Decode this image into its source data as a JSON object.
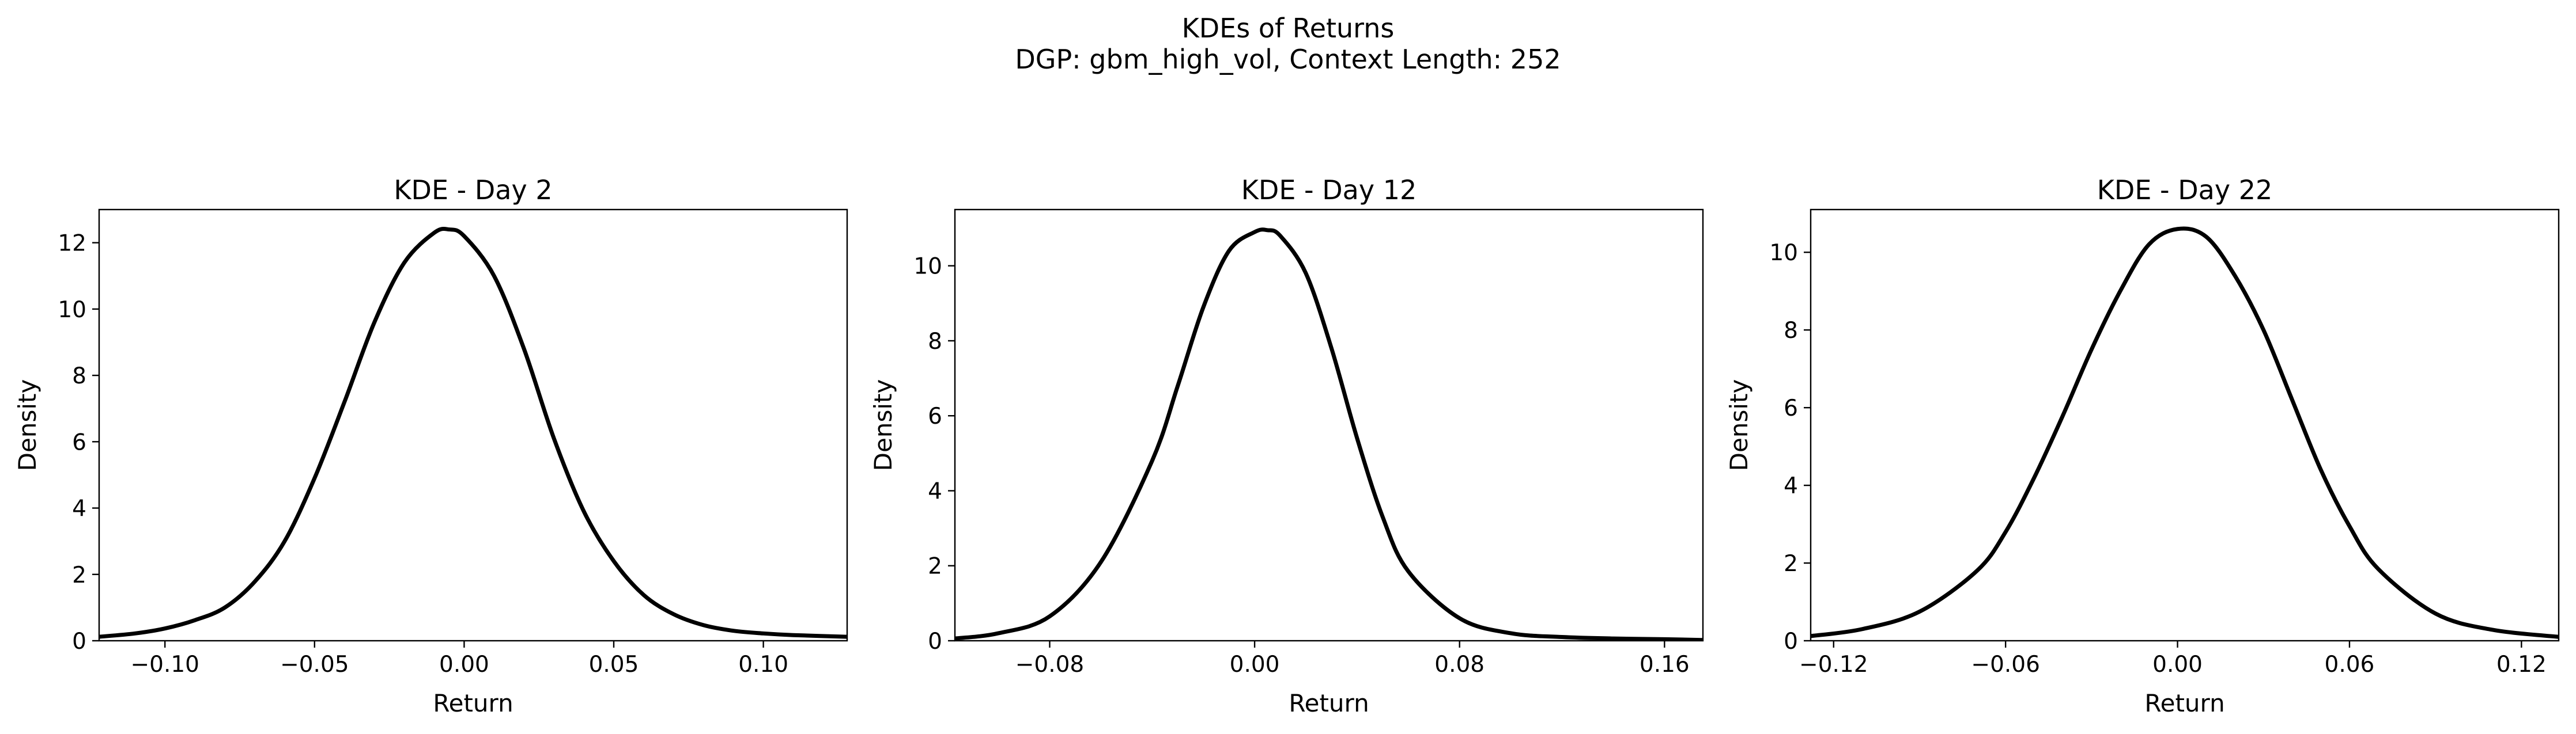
{
  "figure": {
    "title_line1": "KDEs of Returns",
    "title_line2": "DGP: gbm_high_vol, Context Length: 252"
  },
  "chart_data": [
    {
      "type": "line",
      "title": "KDE - Day 2",
      "xlabel": "Return",
      "ylabel": "Density",
      "xlim": [
        -0.122,
        0.128
      ],
      "ylim": [
        0,
        13.0
      ],
      "xticks": [
        -0.1,
        -0.05,
        0.0,
        0.05,
        0.1
      ],
      "xtick_labels": [
        "−0.10",
        "−0.05",
        "0.00",
        "0.05",
        "0.10"
      ],
      "yticks": [
        0,
        2,
        4,
        6,
        8,
        10,
        12
      ],
      "ytick_labels": [
        "0",
        "2",
        "4",
        "6",
        "8",
        "10",
        "12"
      ],
      "line_color": "#000000",
      "series": [
        {
          "x": [
            -0.122,
            -0.11,
            -0.1,
            -0.09,
            -0.08,
            -0.07,
            -0.06,
            -0.05,
            -0.04,
            -0.03,
            -0.02,
            -0.01,
            -0.005,
            0.0,
            0.01,
            0.02,
            0.03,
            0.04,
            0.05,
            0.06,
            0.07,
            0.08,
            0.09,
            0.1,
            0.11,
            0.128
          ],
          "y": [
            0.12,
            0.22,
            0.37,
            0.62,
            1.0,
            1.78,
            3.0,
            4.9,
            7.2,
            9.6,
            11.4,
            12.3,
            12.4,
            12.2,
            11.0,
            8.8,
            6.1,
            3.9,
            2.4,
            1.38,
            0.8,
            0.47,
            0.3,
            0.22,
            0.17,
            0.12
          ]
        }
      ]
    },
    {
      "type": "line",
      "title": "KDE - Day 12",
      "xlabel": "Return",
      "ylabel": "Density",
      "xlim": [
        -0.117,
        0.175
      ],
      "ylim": [
        0,
        11.5
      ],
      "xticks": [
        -0.08,
        0.0,
        0.08,
        0.16
      ],
      "xtick_labels": [
        "−0.08",
        "0.00",
        "0.08",
        "0.16"
      ],
      "yticks": [
        0,
        2,
        4,
        6,
        8,
        10
      ],
      "ytick_labels": [
        "0",
        "2",
        "4",
        "6",
        "8",
        "10"
      ],
      "line_color": "#000000",
      "series": [
        {
          "x": [
            -0.117,
            -0.1,
            -0.08,
            -0.06,
            -0.04,
            -0.03,
            -0.02,
            -0.01,
            0.0,
            0.005,
            0.01,
            0.02,
            0.03,
            0.04,
            0.05,
            0.06,
            0.08,
            0.1,
            0.12,
            0.14,
            0.16,
            0.175
          ],
          "y": [
            0.06,
            0.2,
            0.65,
            2.1,
            4.8,
            6.8,
            8.9,
            10.4,
            10.9,
            10.95,
            10.8,
            9.8,
            7.8,
            5.4,
            3.3,
            1.85,
            0.6,
            0.2,
            0.1,
            0.06,
            0.04,
            0.02
          ]
        }
      ]
    },
    {
      "type": "line",
      "title": "KDE - Day 22",
      "xlabel": "Return",
      "ylabel": "Density",
      "xlim": [
        -0.128,
        0.133
      ],
      "ylim": [
        0,
        11.1
      ],
      "xticks": [
        -0.12,
        -0.06,
        0.0,
        0.06,
        0.12
      ],
      "xtick_labels": [
        "−0.12",
        "−0.06",
        "0.00",
        "0.06",
        "0.12"
      ],
      "yticks": [
        0,
        2,
        4,
        6,
        8,
        10
      ],
      "ytick_labels": [
        "0",
        "2",
        "4",
        "6",
        "8",
        "10"
      ],
      "line_color": "#000000",
      "series": [
        {
          "x": [
            -0.128,
            -0.11,
            -0.09,
            -0.07,
            -0.06,
            -0.05,
            -0.04,
            -0.03,
            -0.02,
            -0.01,
            0.0,
            0.01,
            0.02,
            0.03,
            0.04,
            0.05,
            0.06,
            0.07,
            0.09,
            0.11,
            0.133
          ],
          "y": [
            0.12,
            0.3,
            0.75,
            1.8,
            2.8,
            4.2,
            5.8,
            7.5,
            9.0,
            10.2,
            10.6,
            10.4,
            9.4,
            8.0,
            6.2,
            4.4,
            2.95,
            1.85,
            0.7,
            0.28,
            0.1
          ]
        }
      ]
    }
  ]
}
